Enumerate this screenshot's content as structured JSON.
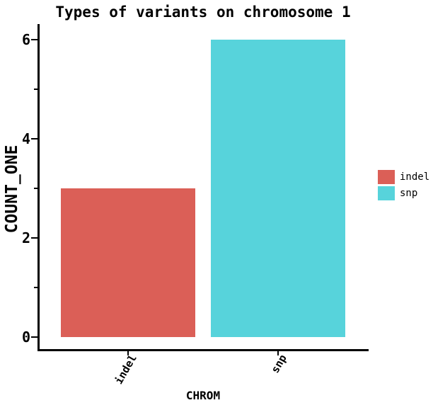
{
  "chart_data": {
    "type": "bar",
    "title": "Types of variants on chromosome 1",
    "xlabel": "CHROM",
    "ylabel": "COUNT_ONE",
    "categories": [
      "indel",
      "snp"
    ],
    "values": [
      3,
      6
    ],
    "colors": [
      "#DB5F57",
      "#57D3DB"
    ],
    "ylim": [
      0,
      6.3
    ],
    "yticks": [
      0,
      2,
      4,
      6
    ],
    "yticks_minor": [
      1,
      3,
      5
    ],
    "xtick_rotation_deg": 60,
    "grid": false,
    "legend": {
      "position": "right",
      "entries": [
        {
          "label": "indel",
          "color": "#DB5F57"
        },
        {
          "label": "snp",
          "color": "#57D3DB"
        }
      ]
    }
  }
}
